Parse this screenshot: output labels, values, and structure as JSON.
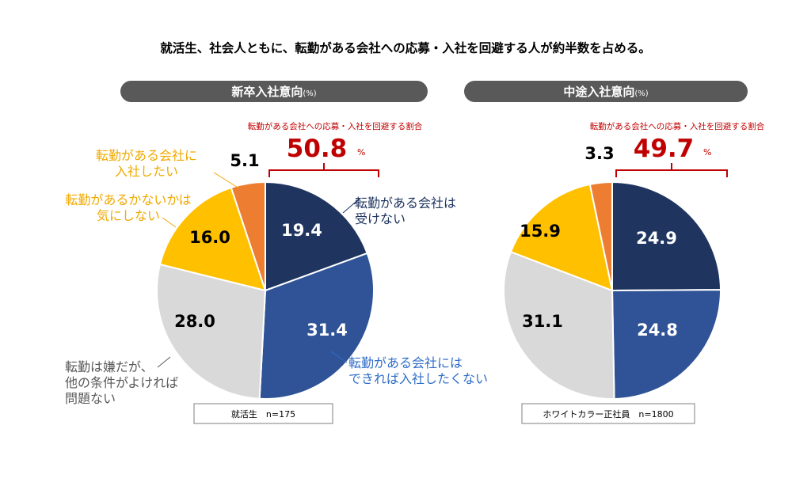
{
  "title": "就活生、社会人ともに、転勤がある会社への応募・入社を回避する人が約半数を占める。",
  "unit": "(%)",
  "bracket_percent_sign": "%",
  "colors": {
    "not_accept": "#1f3560",
    "rather_not": "#2f5396",
    "dislike_ok": "#d9d9d9",
    "dont_care": "#ffc000",
    "want": "#ed7d31",
    "header_bg": "#595959",
    "avoid_text": "#c00000"
  },
  "category_labels": {
    "not_accept": [
      "転勤がある会社は",
      "受けない"
    ],
    "rather_not": [
      "転勤がある会社には",
      "できれば入社したくない"
    ],
    "dislike_ok": [
      "転勤は嫌だが、",
      "他の条件がよければ",
      "問題ない"
    ],
    "dont_care": [
      "転勤があるかないかは",
      "気にしない"
    ],
    "want": [
      "転勤がある会社に",
      "入社したい"
    ]
  },
  "chart_data": [
    {
      "type": "pie",
      "title": "新卒入社意向",
      "categories": [
        "転勤がある会社は受けない",
        "転勤がある会社にはできれば入社したくない",
        "転勤は嫌だが、他の条件がよければ問題ない",
        "転勤があるかないかは気にしない",
        "転勤がある会社に入社したい"
      ],
      "values": [
        19.4,
        31.4,
        28.0,
        16.0,
        5.1
      ],
      "avoid_label": "転勤がある会社への応募・入社を回避する割合",
      "avoid_value": "50.8",
      "sample": "就活生　n=175"
    },
    {
      "type": "pie",
      "title": "中途入社意向",
      "categories": [
        "転勤がある会社は受けない",
        "転勤がある会社にはできれば入社したくない",
        "転勤は嫌だが、他の条件がよければ問題ない",
        "転勤があるかないかは気にしない",
        "転勤がある会社に入社したい"
      ],
      "values": [
        24.9,
        24.8,
        31.1,
        15.9,
        3.3
      ],
      "avoid_label": "転勤がある会社への応募・入社を回避する割合",
      "avoid_value": "49.7",
      "sample": "ホワイトカラー正社員　n=1800"
    }
  ]
}
